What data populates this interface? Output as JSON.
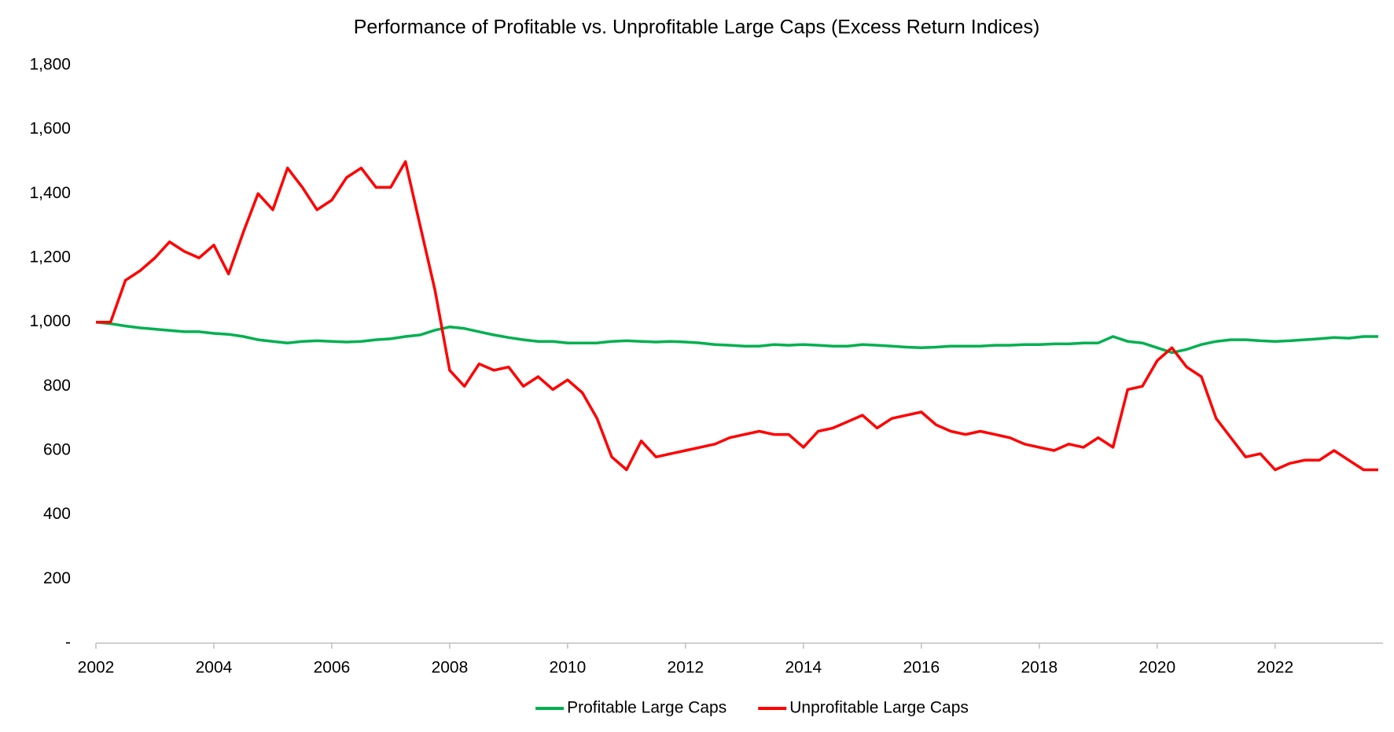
{
  "chart_data": {
    "type": "line",
    "title": "Performance of Profitable vs. Unprofitable Large Caps (Excess Return Indices)",
    "x": [
      2002,
      2002.25,
      2002.5,
      2002.75,
      2003,
      2003.25,
      2003.5,
      2003.75,
      2004,
      2004.25,
      2004.5,
      2004.75,
      2005,
      2005.25,
      2005.5,
      2005.75,
      2006,
      2006.25,
      2006.5,
      2006.75,
      2007,
      2007.25,
      2007.5,
      2007.75,
      2008,
      2008.25,
      2008.5,
      2008.75,
      2009,
      2009.25,
      2009.5,
      2009.75,
      2010,
      2010.25,
      2010.5,
      2010.75,
      2011,
      2011.25,
      2011.5,
      2011.75,
      2012,
      2012.25,
      2012.5,
      2012.75,
      2013,
      2013.25,
      2013.5,
      2013.75,
      2014,
      2014.25,
      2014.5,
      2014.75,
      2015,
      2015.25,
      2015.5,
      2015.75,
      2016,
      2016.25,
      2016.5,
      2016.75,
      2017,
      2017.25,
      2017.5,
      2017.75,
      2018,
      2018.25,
      2018.5,
      2018.75,
      2019,
      2019.25,
      2019.5,
      2019.75,
      2020,
      2020.25,
      2020.5,
      2020.75,
      2021,
      2021.25,
      2021.5,
      2021.75,
      2022,
      2022.25,
      2022.5,
      2022.75,
      2023,
      2023.25,
      2023.5,
      2023.75
    ],
    "series": [
      {
        "name": "Profitable Large Caps",
        "color": "#00b050",
        "values": [
          1000,
          995,
          988,
          982,
          978,
          974,
          970,
          970,
          965,
          962,
          955,
          945,
          940,
          935,
          940,
          942,
          940,
          938,
          940,
          945,
          948,
          955,
          960,
          975,
          985,
          980,
          970,
          960,
          952,
          945,
          940,
          940,
          935,
          935,
          935,
          940,
          942,
          940,
          938,
          940,
          938,
          935,
          930,
          928,
          925,
          925,
          930,
          928,
          930,
          928,
          925,
          925,
          930,
          928,
          925,
          922,
          920,
          922,
          925,
          925,
          925,
          928,
          928,
          930,
          930,
          932,
          932,
          935,
          935,
          955,
          940,
          935,
          920,
          905,
          915,
          930,
          940,
          945,
          945,
          942,
          940,
          942,
          945,
          948,
          952,
          950,
          955,
          955
        ]
      },
      {
        "name": "Unprofitable Large Caps",
        "color": "#ff0000",
        "values": [
          1000,
          1000,
          1130,
          1160,
          1200,
          1250,
          1220,
          1200,
          1240,
          1150,
          1280,
          1400,
          1350,
          1480,
          1420,
          1350,
          1380,
          1450,
          1480,
          1420,
          1420,
          1500,
          1300,
          1100,
          850,
          800,
          870,
          850,
          860,
          800,
          830,
          790,
          820,
          780,
          700,
          580,
          540,
          630,
          580,
          590,
          600,
          610,
          620,
          640,
          650,
          660,
          650,
          650,
          610,
          660,
          670,
          690,
          710,
          670,
          700,
          710,
          720,
          680,
          660,
          650,
          660,
          650,
          640,
          620,
          610,
          600,
          620,
          610,
          640,
          610,
          790,
          800,
          880,
          920,
          860,
          830,
          700,
          640,
          580,
          590,
          540,
          560,
          570,
          570,
          600,
          570,
          540,
          540
        ]
      }
    ],
    "xlim": [
      2002,
      2023.83
    ],
    "xticks": [
      2002,
      2004,
      2006,
      2008,
      2010,
      2012,
      2014,
      2016,
      2018,
      2020,
      2022
    ],
    "ylim": [
      0,
      1800
    ],
    "yticks": [
      {
        "value": 0,
        "label": "-"
      },
      200,
      400,
      600,
      800,
      {
        "value": 1000,
        "label": "1,000"
      },
      {
        "value": 1200,
        "label": "1,200"
      },
      {
        "value": 1400,
        "label": "1,400"
      },
      {
        "value": 1600,
        "label": "1,600"
      },
      {
        "value": 1800,
        "label": "1,800"
      }
    ],
    "grid": false,
    "legend": "bottom"
  }
}
